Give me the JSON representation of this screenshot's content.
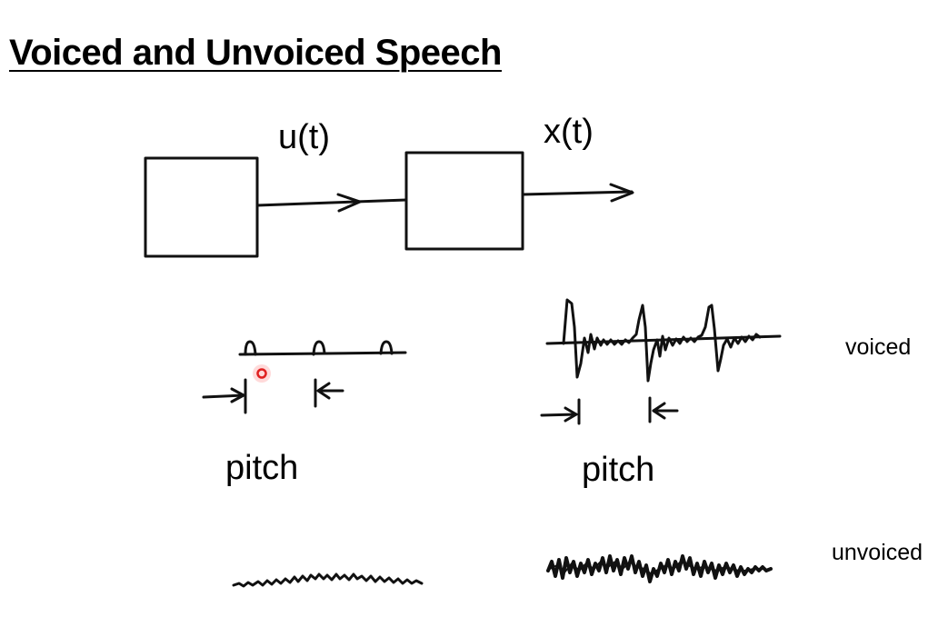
{
  "slide": {
    "title": "Voiced and Unvoiced Speech"
  },
  "diagram": {
    "input_signal_label": "u(t)",
    "output_signal_label": "x(t)",
    "voiced_excitation_period_label": "pitch",
    "voiced_speech_period_label": "pitch",
    "voiced_row_label": "voiced",
    "unvoiced_row_label": "unvoiced"
  },
  "colors": {
    "ink": "#111111",
    "pointer": "#e02020",
    "background": "#ffffff"
  }
}
